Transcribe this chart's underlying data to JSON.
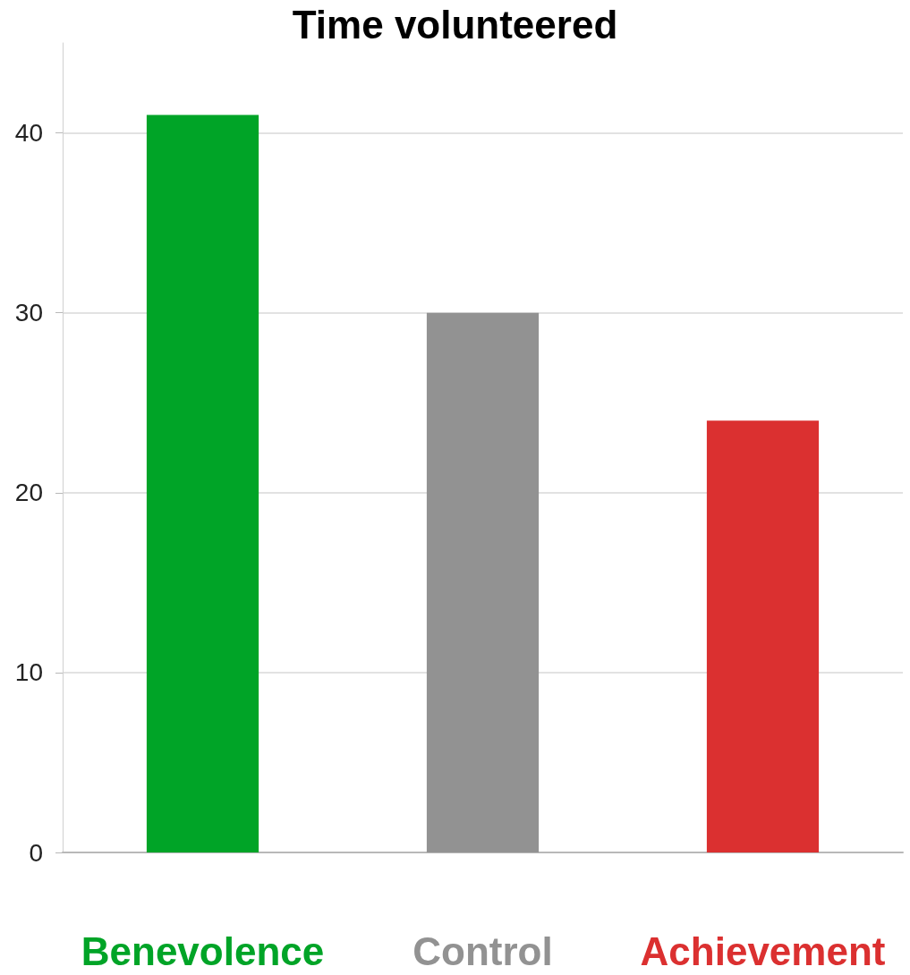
{
  "chart_data": {
    "type": "bar",
    "title": "Time volunteered",
    "categories": [
      "Benevolence",
      "Control",
      "Achievement"
    ],
    "values": [
      41,
      30,
      24
    ],
    "colors": [
      "#00a427",
      "#929292",
      "#db3030"
    ],
    "ylim": [
      0,
      45
    ],
    "yticks": [
      0,
      10,
      20,
      30,
      40
    ],
    "grid": "y"
  }
}
